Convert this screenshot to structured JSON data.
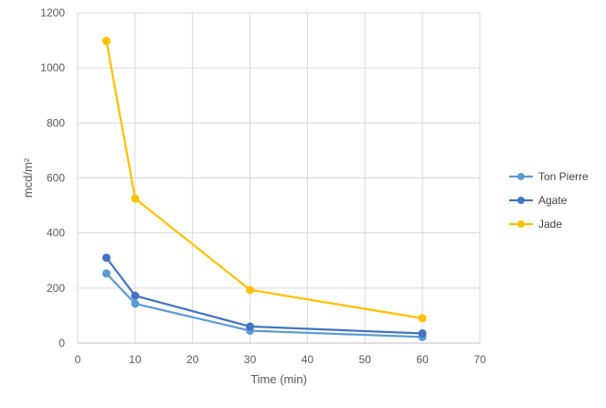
{
  "chart_data": {
    "type": "scatter",
    "title": "",
    "xlabel": "Time (min)",
    "ylabel": "mcd/m²",
    "xlim": [
      0,
      70
    ],
    "ylim": [
      0,
      1200
    ],
    "xticks": [
      0,
      10,
      20,
      30,
      40,
      50,
      60,
      70
    ],
    "yticks": [
      0,
      200,
      400,
      600,
      800,
      1000,
      1200
    ],
    "grid": true,
    "legend_position": "right",
    "x": [
      5,
      10,
      30,
      60
    ],
    "series": [
      {
        "name": "Ton Pierre",
        "color": "#5b9bd5",
        "values": [
          253,
          143,
          45,
          22
        ]
      },
      {
        "name": "Agate",
        "color": "#4472c4",
        "values": [
          310,
          172,
          60,
          35
        ]
      },
      {
        "name": "Jade",
        "color": "#ffc000",
        "values": [
          1098,
          525,
          193,
          90
        ]
      }
    ]
  }
}
